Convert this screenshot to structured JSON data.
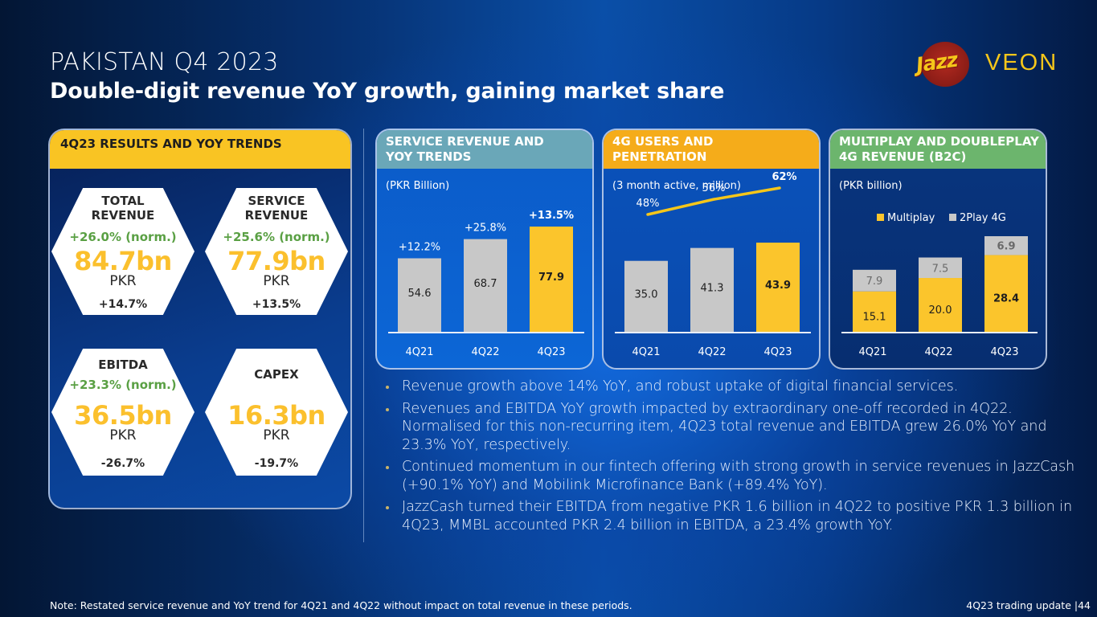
{
  "header": {
    "title": "PAKISTAN Q4 2023",
    "subtitle": "Double-digit revenue YoY growth, gaining market share"
  },
  "logo": {
    "brand1": "Jazz",
    "brand2": "VEON",
    "brand_color": "#f5c61a"
  },
  "results_panel": {
    "title": "4Q23 RESULTS AND YOY TRENDS",
    "header_color": "#f9c423",
    "kpis": [
      {
        "label_line1": "TOTAL",
        "label_line2": "REVENUE",
        "norm": "+26.0% (norm.)",
        "value": "84.7bn",
        "unit": "PKR",
        "yoy": "+14.7%"
      },
      {
        "label_line1": "SERVICE",
        "label_line2": "REVENUE",
        "norm": "+25.6% (norm.)",
        "value": "77.9bn",
        "unit": "PKR",
        "yoy": "+13.5%"
      },
      {
        "label_line1": "EBITDA",
        "label_line2": "",
        "norm": "+23.3% (norm.)",
        "value": "36.5bn",
        "unit": "PKR",
        "yoy": "-26.7%"
      },
      {
        "label_line1": "CAPEX",
        "label_line2": "",
        "norm": "",
        "value": "16.3bn",
        "unit": "PKR",
        "yoy": "-19.7%"
      }
    ],
    "colors": {
      "value": "#fbc02d",
      "norm": "#5aa044"
    }
  },
  "chart_data": [
    {
      "type": "bar",
      "title": "SERVICE REVENUE AND YOY TRENDS",
      "title_line1": "SERVICE REVENUE AND",
      "title_line2": "YOY TRENDS",
      "unit_label": "(PKR Billion)",
      "categories": [
        "4Q21",
        "4Q22",
        "4Q23"
      ],
      "values": [
        54.6,
        68.7,
        77.9
      ],
      "value_labels": [
        "54.6",
        "68.7",
        "77.9"
      ],
      "annotations": [
        "+12.2%",
        "+25.8%",
        "+13.5%"
      ],
      "highlight_index": 2,
      "colors": {
        "base": "#c8c8c8",
        "highlight": "#fbc52c",
        "header": "#6aa7b8"
      },
      "ylim": [
        0,
        85
      ]
    },
    {
      "type": "bar",
      "title": "4G USERS AND PENETRATION",
      "title_line1": "4G USERS AND",
      "title_line2": "PENETRATION",
      "unit_label": "(3 month active, million)",
      "categories": [
        "4Q21",
        "4Q22",
        "4Q23"
      ],
      "values": [
        35.0,
        41.3,
        43.9
      ],
      "value_labels": [
        "35.0",
        "41.3",
        "43.9"
      ],
      "line_series": {
        "name": "4G penetration",
        "values": [
          48,
          56,
          62
        ],
        "labels": [
          "48%",
          "56%",
          "62%"
        ]
      },
      "highlight_index": 2,
      "colors": {
        "base": "#c8c8c8",
        "highlight": "#fbc52c",
        "line": "#f5c61a",
        "header": "#f5ac1a"
      },
      "ylim": [
        0,
        50
      ]
    },
    {
      "type": "bar",
      "stacked": true,
      "title": "MULTIPLAY AND DOUBLEPLAY 4G REVENUE (B2C)",
      "title_line1": "MULTIPLAY AND DOUBLEPLAY",
      "title_line2": "4G REVENUE (B2C)",
      "unit_label": "(PKR billion)",
      "categories": [
        "4Q21",
        "4Q22",
        "4Q23"
      ],
      "series": [
        {
          "name": "Multiplay",
          "values": [
            15.1,
            20.0,
            28.4
          ],
          "labels": [
            "15.1",
            "20.0",
            "28.4"
          ],
          "color": "#fbc52c"
        },
        {
          "name": "2Play 4G",
          "values": [
            7.9,
            7.5,
            6.9
          ],
          "labels": [
            "7.9",
            "7.5",
            "6.9"
          ],
          "color": "#c8c8c8"
        }
      ],
      "legend": "top",
      "highlight_index": 2,
      "colors": {
        "header": "#6cb56d"
      },
      "ylim": [
        0,
        38
      ]
    }
  ],
  "bullets": [
    {
      "text": "Revenue growth above 14% YoY, and robust uptake of digital financial services."
    },
    {
      "text": "Revenues and EBITDA YoY growth impacted by extraordinary one-off recorded in 4Q22. Normalised for this non-recurring item, 4Q23 total revenue and EBITDA grew 26.0% YoY and 23.3% YoY, respectively."
    },
    {
      "text": "Continued momentum in our fintech offering with strong growth in service revenues in JazzCash (+90.1% YoY) and Mobilink Microfinance Bank (+89.4% YoY)."
    },
    {
      "text": "JazzCash turned their EBITDA from negative PKR 1.6 billion in 4Q22 to positive PKR 1.3 billion in 4Q23, MMBL accounted PKR 2.4 billion in EBITDA, a 23.4% growth YoY."
    }
  ],
  "footer": {
    "note": "Note: Restated service revenue and YoY trend for 4Q21 and 4Q22 without impact on total revenue in these periods.",
    "page_ref": "4Q23 trading update |44"
  }
}
